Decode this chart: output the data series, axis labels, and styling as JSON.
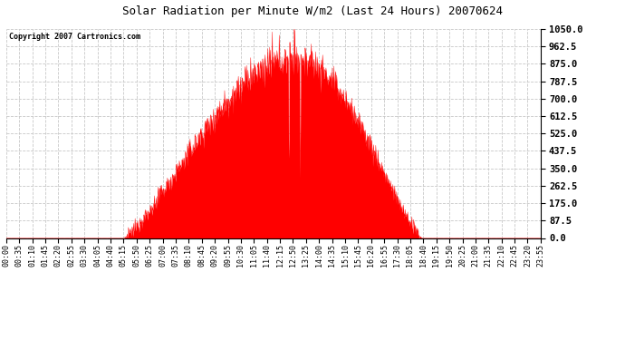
{
  "title": "Solar Radiation per Minute W/m2 (Last 24 Hours) 20070624",
  "copyright": "Copyright 2007 Cartronics.com",
  "y_min": 0.0,
  "y_max": 1050.0,
  "y_ticks": [
    0.0,
    87.5,
    175.0,
    262.5,
    350.0,
    437.5,
    525.0,
    612.5,
    700.0,
    787.5,
    875.0,
    962.5,
    1050.0
  ],
  "fill_color": "#ff0000",
  "line_color": "#ff0000",
  "dashed_line_color": "#ff0000",
  "bg_color": "#ffffff",
  "grid_color": "#c8c8c8",
  "x_labels": [
    "00:00",
    "00:35",
    "01:10",
    "01:45",
    "02:20",
    "02:55",
    "03:30",
    "04:05",
    "04:40",
    "05:15",
    "05:50",
    "06:25",
    "07:00",
    "07:35",
    "08:10",
    "08:45",
    "09:20",
    "09:55",
    "10:30",
    "11:05",
    "11:40",
    "12:15",
    "12:50",
    "13:25",
    "14:00",
    "14:35",
    "15:10",
    "15:45",
    "16:20",
    "16:55",
    "17:30",
    "18:05",
    "18:40",
    "19:15",
    "19:50",
    "20:25",
    "21:00",
    "21:35",
    "22:10",
    "22:45",
    "23:20",
    "23:55"
  ],
  "num_points": 1440,
  "sunrise_minute": 315,
  "sunset_minute": 1120,
  "peak_minute": 780,
  "peak_value": 900
}
